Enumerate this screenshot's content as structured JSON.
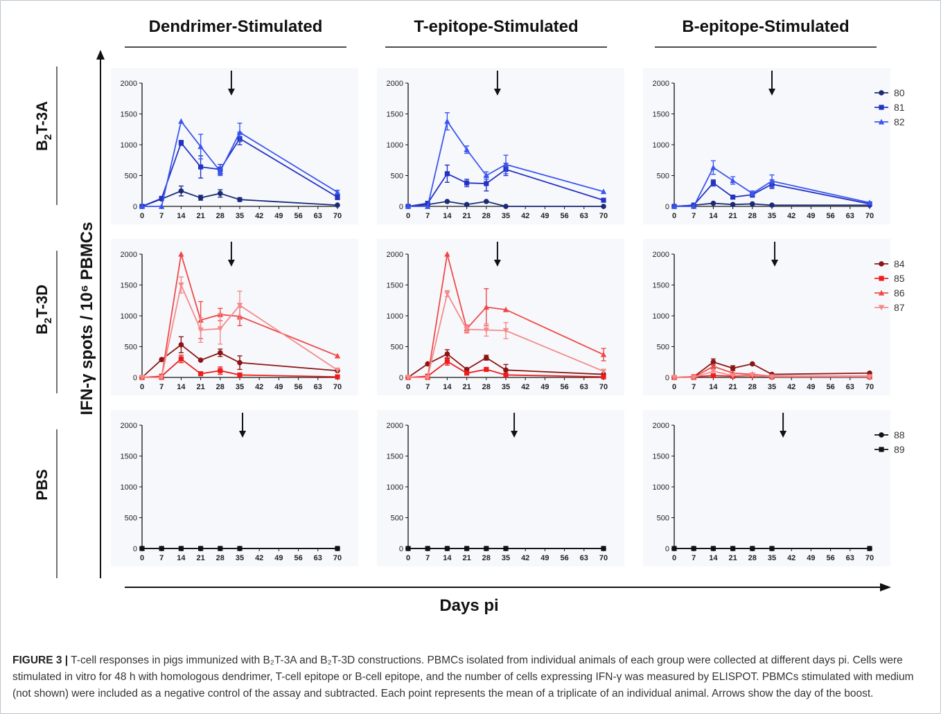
{
  "chart_data": {
    "type": "line",
    "x": [
      0,
      7,
      14,
      21,
      28,
      35,
      70
    ],
    "x_ticks": [
      "0",
      "7",
      "14",
      "21",
      "28",
      "35",
      "42",
      "49",
      "56",
      "63",
      "70"
    ],
    "y_ticks": [
      "0",
      "500",
      "1000",
      "1500",
      "2000"
    ],
    "ylim": [
      0,
      2000
    ],
    "column_titles": [
      "Dendrimer-Stimulated",
      "T-epitope-Stimulated",
      "B-epitope-Stimulated"
    ],
    "row_labels": [
      "B2T-3A",
      "B2T-3D",
      "PBS"
    ],
    "ylabel": "IFN-γ spots / 10⁶ PBMCs",
    "xlabel": "Days pi",
    "boost_arrows": "one per panel (day of the boost)",
    "colors": {
      "80": "#1a2a78",
      "81": "#2233c2",
      "82": "#3a55f0",
      "84": "#8b1414",
      "85": "#ee1c1c",
      "86": "#f04848",
      "87": "#f58a8a",
      "88": "#111111",
      "89": "#111111"
    },
    "rows": [
      {
        "legend": [
          "80",
          "81",
          "82"
        ],
        "panels": [
          {
            "series": [
              {
                "name": "80",
                "values": [
                  0,
                  120,
                  250,
                  140,
                  210,
                  110,
                  20
                ],
                "err": [
                  0,
                  0,
                  80,
                  40,
                  60,
                  30,
                  0
                ]
              },
              {
                "name": "81",
                "values": [
                  0,
                  130,
                  1030,
                  640,
                  600,
                  1100,
                  150
                ],
                "err": [
                  0,
                  0,
                  40,
                  180,
                  80,
                  100,
                  40
                ]
              },
              {
                "name": "82",
                "values": [
                  0,
                  0,
                  1380,
                  970,
                  570,
                  1200,
                  230
                ],
                "err": [
                  0,
                  0,
                  0,
                  200,
                  70,
                  150,
                  30
                ]
              }
            ]
          },
          {
            "series": [
              {
                "name": "80",
                "values": [
                  0,
                  30,
                  80,
                  30,
                  80,
                  0,
                  0
                ],
                "err": [
                  0,
                  0,
                  0,
                  0,
                  0,
                  0,
                  0
                ]
              },
              {
                "name": "81",
                "values": [
                  0,
                  50,
                  530,
                  380,
                  370,
                  600,
                  100
                ],
                "err": [
                  0,
                  0,
                  140,
                  60,
                  120,
                  100,
                  0
                ]
              },
              {
                "name": "82",
                "values": [
                  0,
                  0,
                  1380,
                  920,
                  500,
                  680,
                  240
                ],
                "err": [
                  0,
                  0,
                  140,
                  60,
                  60,
                  150,
                  0
                ]
              }
            ]
          },
          {
            "series": [
              {
                "name": "80",
                "values": [
                  0,
                  20,
                  50,
                  30,
                  40,
                  20,
                  20
                ],
                "err": [
                  0,
                  0,
                  0,
                  0,
                  0,
                  0,
                  0
                ]
              },
              {
                "name": "81",
                "values": [
                  0,
                  20,
                  380,
                  150,
                  190,
                  360,
                  40
                ],
                "err": [
                  0,
                  0,
                  50,
                  30,
                  40,
                  70,
                  0
                ]
              },
              {
                "name": "82",
                "values": [
                  0,
                  0,
                  630,
                  420,
                  210,
                  410,
                  60
                ],
                "err": [
                  0,
                  0,
                  110,
                  60,
                  40,
                  100,
                  0
                ]
              }
            ]
          }
        ]
      },
      {
        "legend": [
          "84",
          "85",
          "86",
          "87"
        ],
        "panels": [
          {
            "series": [
              {
                "name": "84",
                "values": [
                  0,
                  290,
                  530,
                  280,
                  400,
                  240,
                  110
                ],
                "err": [
                  0,
                  0,
                  130,
                  0,
                  60,
                  110,
                  0
                ]
              },
              {
                "name": "85",
                "values": [
                  0,
                  20,
                  300,
                  60,
                  110,
                  40,
                  10
                ],
                "err": [
                  0,
                  0,
                  60,
                  30,
                  60,
                  20,
                  0
                ]
              },
              {
                "name": "86",
                "values": [
                  0,
                  0,
                  2000,
                  930,
                  1020,
                  990,
                  350
                ],
                "err": [
                  0,
                  0,
                  0,
                  300,
                  100,
                  150,
                  0
                ]
              },
              {
                "name": "87",
                "values": [
                  0,
                  0,
                  1500,
                  770,
                  790,
                  1170,
                  120
                ],
                "err": [
                  0,
                  0,
                  130,
                  200,
                  250,
                  230,
                  0
                ]
              }
            ]
          },
          {
            "series": [
              {
                "name": "84",
                "values": [
                  0,
                  220,
                  380,
                  130,
                  320,
                  120,
                  50
                ],
                "err": [
                  0,
                  0,
                  70,
                  0,
                  40,
                  90,
                  0
                ]
              },
              {
                "name": "85",
                "values": [
                  0,
                  20,
                  260,
                  70,
                  130,
                  40,
                  10
                ],
                "err": [
                  0,
                  0,
                  60,
                  20,
                  0,
                  0,
                  0
                ]
              },
              {
                "name": "86",
                "values": [
                  0,
                  0,
                  2000,
                  790,
                  1140,
                  1100,
                  370
                ],
                "err": [
                  0,
                  0,
                  0,
                  60,
                  300,
                  0,
                  100
                ]
              },
              {
                "name": "87",
                "values": [
                  0,
                  0,
                  1360,
                  780,
                  770,
                  760,
                  100
                ],
                "err": [
                  0,
                  0,
                  50,
                  60,
                  100,
                  130,
                  0
                ]
              }
            ]
          },
          {
            "series": [
              {
                "name": "84",
                "values": [
                  0,
                  10,
                  250,
                  150,
                  220,
                  50,
                  70
                ],
                "err": [
                  0,
                  0,
                  50,
                  40,
                  0,
                  0,
                  0
                ]
              },
              {
                "name": "85",
                "values": [
                  0,
                  10,
                  30,
                  20,
                  30,
                  10,
                  10
                ],
                "err": [
                  0,
                  0,
                  0,
                  0,
                  0,
                  0,
                  0
                ]
              },
              {
                "name": "86",
                "values": [
                  0,
                  0,
                  180,
                  70,
                  50,
                  20,
                  20
                ],
                "err": [
                  0,
                  0,
                  0,
                  0,
                  0,
                  0,
                  0
                ]
              },
              {
                "name": "87",
                "values": [
                  0,
                  0,
                  100,
                  30,
                  40,
                  10,
                  10
                ],
                "err": [
                  0,
                  0,
                  0,
                  0,
                  0,
                  0,
                  0
                ]
              }
            ]
          }
        ]
      },
      {
        "legend": [
          "88",
          "89"
        ],
        "panels": [
          {
            "series": [
              {
                "name": "88",
                "values": [
                  0,
                  0,
                  0,
                  0,
                  0,
                  0,
                  0
                ],
                "err": [
                  0,
                  0,
                  0,
                  0,
                  0,
                  0,
                  0
                ]
              },
              {
                "name": "89",
                "values": [
                  0,
                  0,
                  0,
                  0,
                  0,
                  0,
                  0
                ],
                "err": [
                  0,
                  0,
                  0,
                  0,
                  0,
                  0,
                  0
                ]
              }
            ]
          },
          {
            "series": [
              {
                "name": "88",
                "values": [
                  0,
                  0,
                  0,
                  0,
                  0,
                  0,
                  0
                ],
                "err": [
                  0,
                  0,
                  0,
                  0,
                  0,
                  0,
                  0
                ]
              },
              {
                "name": "89",
                "values": [
                  0,
                  0,
                  0,
                  0,
                  0,
                  0,
                  0
                ],
                "err": [
                  0,
                  0,
                  0,
                  0,
                  0,
                  0,
                  0
                ]
              }
            ]
          },
          {
            "series": [
              {
                "name": "88",
                "values": [
                  0,
                  0,
                  0,
                  0,
                  0,
                  0,
                  0
                ],
                "err": [
                  0,
                  0,
                  0,
                  0,
                  0,
                  0,
                  0
                ]
              },
              {
                "name": "89",
                "values": [
                  0,
                  0,
                  0,
                  0,
                  0,
                  0,
                  0
                ],
                "err": [
                  0,
                  0,
                  0,
                  0,
                  0,
                  0,
                  0
                ]
              }
            ]
          }
        ]
      }
    ]
  },
  "caption": {
    "label": "FIGURE 3 |",
    "text": "T-cell responses in pigs immunized with B₂T-3A and B₂T-3D constructions. PBMCs isolated from individual animals of each group were collected at different days pi. Cells were stimulated in vitro for 48 h with homologous dendrimer, T-cell epitope or B-cell epitope, and the number of cells expressing IFN-γ was measured by ELISPOT. PBMCs stimulated with medium (not shown) were included as a negative control of the assay and subtracted. Each point represents the mean of a triplicate of an individual animal. Arrows show the day of the boost."
  }
}
